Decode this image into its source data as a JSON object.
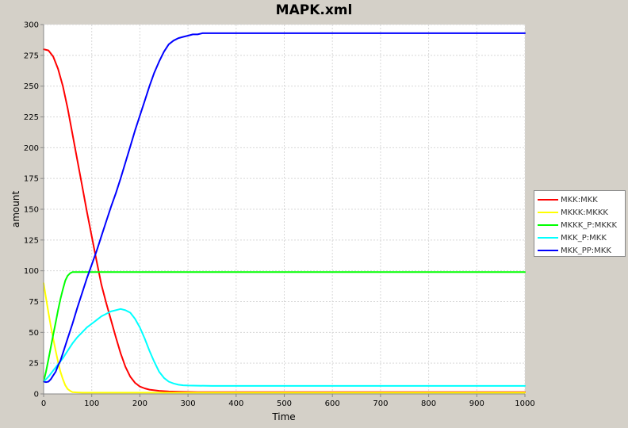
{
  "chart_data": {
    "type": "line",
    "title": "MAPK.xml",
    "xlabel": "Time",
    "ylabel": "amount",
    "xlim": [
      0,
      1000
    ],
    "ylim": [
      0,
      300
    ],
    "x_ticks": [
      0,
      100,
      200,
      300,
      400,
      500,
      600,
      700,
      800,
      900,
      1000
    ],
    "y_ticks": [
      0,
      25,
      50,
      75,
      100,
      125,
      150,
      175,
      200,
      225,
      250,
      275,
      300
    ],
    "grid": true,
    "legend_position": "right",
    "series": [
      {
        "name": "MKK:MKK",
        "color": "#ff0000",
        "points": [
          [
            0,
            280
          ],
          [
            10,
            279
          ],
          [
            20,
            274
          ],
          [
            30,
            264
          ],
          [
            40,
            250
          ],
          [
            50,
            232
          ],
          [
            60,
            211
          ],
          [
            70,
            190
          ],
          [
            80,
            169
          ],
          [
            90,
            148
          ],
          [
            100,
            128
          ],
          [
            110,
            108
          ],
          [
            120,
            89
          ],
          [
            130,
            74
          ],
          [
            140,
            60
          ],
          [
            150,
            46
          ],
          [
            160,
            33
          ],
          [
            170,
            22
          ],
          [
            180,
            14
          ],
          [
            190,
            9
          ],
          [
            200,
            6
          ],
          [
            210,
            4.5
          ],
          [
            220,
            3.5
          ],
          [
            240,
            2.5
          ],
          [
            260,
            2
          ],
          [
            280,
            1.8
          ],
          [
            300,
            1.6
          ],
          [
            320,
            1.5
          ],
          [
            400,
            1.5
          ],
          [
            500,
            1.5
          ],
          [
            600,
            1.5
          ],
          [
            700,
            1.5
          ],
          [
            800,
            1.5
          ],
          [
            900,
            1.5
          ],
          [
            1000,
            1.5
          ]
        ]
      },
      {
        "name": "MKKK:MKKK",
        "color": "#ffff00",
        "points": [
          [
            0,
            90
          ],
          [
            5,
            78
          ],
          [
            10,
            66
          ],
          [
            15,
            55
          ],
          [
            20,
            45
          ],
          [
            25,
            35
          ],
          [
            30,
            26
          ],
          [
            35,
            18
          ],
          [
            40,
            12
          ],
          [
            45,
            7
          ],
          [
            50,
            4
          ],
          [
            55,
            2.5
          ],
          [
            60,
            1.5
          ],
          [
            70,
            1.2
          ],
          [
            80,
            1
          ],
          [
            100,
            1
          ],
          [
            200,
            1
          ],
          [
            300,
            1
          ],
          [
            500,
            1
          ],
          [
            700,
            1
          ],
          [
            1000,
            1
          ]
        ]
      },
      {
        "name": "MKKK_P:MKKK",
        "color": "#00ff00",
        "points": [
          [
            0,
            10
          ],
          [
            5,
            18
          ],
          [
            10,
            28
          ],
          [
            15,
            38
          ],
          [
            20,
            48
          ],
          [
            25,
            58
          ],
          [
            30,
            68
          ],
          [
            35,
            77
          ],
          [
            40,
            85
          ],
          [
            45,
            92
          ],
          [
            50,
            96
          ],
          [
            55,
            98
          ],
          [
            60,
            99
          ],
          [
            70,
            99
          ],
          [
            100,
            99
          ],
          [
            200,
            99
          ],
          [
            300,
            99
          ],
          [
            400,
            99
          ],
          [
            500,
            99
          ],
          [
            600,
            99
          ],
          [
            700,
            99
          ],
          [
            800,
            99
          ],
          [
            900,
            99
          ],
          [
            1000,
            99
          ]
        ]
      },
      {
        "name": "MKK_P:MKK",
        "color": "#00ffff",
        "points": [
          [
            0,
            10
          ],
          [
            10,
            14
          ],
          [
            20,
            19
          ],
          [
            30,
            24
          ],
          [
            40,
            29
          ],
          [
            50,
            35
          ],
          [
            60,
            41
          ],
          [
            70,
            46
          ],
          [
            80,
            50
          ],
          [
            90,
            54
          ],
          [
            100,
            57
          ],
          [
            110,
            60
          ],
          [
            120,
            63
          ],
          [
            130,
            65
          ],
          [
            140,
            67
          ],
          [
            150,
            68
          ],
          [
            160,
            69
          ],
          [
            170,
            68
          ],
          [
            180,
            66
          ],
          [
            190,
            61
          ],
          [
            200,
            54
          ],
          [
            210,
            45
          ],
          [
            220,
            35
          ],
          [
            230,
            26
          ],
          [
            240,
            18
          ],
          [
            250,
            13
          ],
          [
            260,
            10
          ],
          [
            270,
            8.5
          ],
          [
            280,
            7.5
          ],
          [
            290,
            7
          ],
          [
            300,
            6.8
          ],
          [
            350,
            6.5
          ],
          [
            400,
            6.5
          ],
          [
            500,
            6.5
          ],
          [
            600,
            6.5
          ],
          [
            700,
            6.5
          ],
          [
            800,
            6.5
          ],
          [
            900,
            6.5
          ],
          [
            1000,
            6.5
          ]
        ]
      },
      {
        "name": "MKK_PP:MKK",
        "color": "#0000ff",
        "points": [
          [
            0,
            10
          ],
          [
            5,
            9.5
          ],
          [
            10,
            10
          ],
          [
            15,
            12
          ],
          [
            20,
            15
          ],
          [
            25,
            18
          ],
          [
            30,
            23
          ],
          [
            35,
            27
          ],
          [
            40,
            33
          ],
          [
            50,
            45
          ],
          [
            60,
            57
          ],
          [
            70,
            70
          ],
          [
            80,
            82
          ],
          [
            90,
            94
          ],
          [
            100,
            105
          ],
          [
            110,
            116
          ],
          [
            120,
            128
          ],
          [
            130,
            140
          ],
          [
            140,
            152
          ],
          [
            150,
            163
          ],
          [
            160,
            175
          ],
          [
            170,
            188
          ],
          [
            180,
            201
          ],
          [
            190,
            214
          ],
          [
            200,
            226
          ],
          [
            210,
            238
          ],
          [
            220,
            250
          ],
          [
            230,
            261
          ],
          [
            240,
            270
          ],
          [
            250,
            278
          ],
          [
            260,
            284
          ],
          [
            270,
            287
          ],
          [
            280,
            289
          ],
          [
            290,
            290
          ],
          [
            300,
            291
          ],
          [
            310,
            292
          ],
          [
            320,
            292
          ],
          [
            330,
            293
          ],
          [
            400,
            293
          ],
          [
            500,
            293
          ],
          [
            600,
            293
          ],
          [
            700,
            293
          ],
          [
            800,
            293
          ],
          [
            900,
            293
          ],
          [
            1000,
            293
          ]
        ]
      }
    ]
  }
}
